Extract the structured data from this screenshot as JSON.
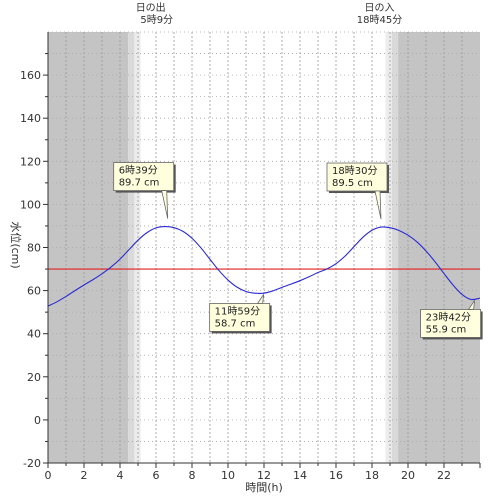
{
  "chart_data": {
    "type": "line",
    "xlabel": "時間(h)",
    "ylabel": "水位(cm)",
    "xlim": [
      0,
      24
    ],
    "ylim": [
      -20,
      180
    ],
    "x_ticks": [
      0,
      2,
      4,
      6,
      8,
      10,
      12,
      14,
      16,
      18,
      20,
      22
    ],
    "y_ticks": [
      -20,
      0,
      20,
      40,
      60,
      80,
      100,
      120,
      140,
      160
    ],
    "grid": true,
    "legend": "none",
    "sunrise": {
      "title": "日の出",
      "time_label": "5時9分",
      "hour": 5.15
    },
    "sunset": {
      "title": "日の入",
      "time_label": "18時45分",
      "hour": 18.75
    },
    "reference_line": {
      "value": 70,
      "color": "#e02020"
    },
    "series": [
      {
        "color": "#2a2ad6",
        "x": [
          0,
          0.5,
          1,
          1.5,
          2,
          2.5,
          3,
          3.5,
          4,
          4.5,
          5,
          5.5,
          6,
          6.5,
          7,
          7.5,
          8,
          8.5,
          9,
          9.5,
          10,
          10.5,
          11,
          11.5,
          12,
          12.5,
          13,
          13.5,
          14,
          14.5,
          15,
          15.5,
          16,
          16.5,
          17,
          17.5,
          18,
          18.5,
          19,
          19.5,
          20,
          20.5,
          21,
          21.5,
          22,
          22.5,
          23,
          23.5,
          24
        ],
        "y": [
          52.8,
          54.8,
          57.3,
          60.0,
          62.6,
          65.1,
          67.8,
          70.9,
          74.6,
          79.0,
          83.4,
          86.9,
          89.1,
          89.7,
          89.2,
          87.5,
          84.3,
          79.8,
          74.5,
          69.3,
          64.9,
          61.6,
          59.6,
          58.8,
          58.8,
          59.9,
          61.5,
          63.0,
          64.6,
          66.4,
          68.4,
          70.1,
          72.5,
          76.0,
          80.4,
          84.8,
          88.0,
          89.5,
          89.2,
          87.9,
          85.7,
          82.6,
          78.4,
          73.4,
          67.9,
          62.6,
          58.2,
          55.9,
          56.5
        ]
      }
    ],
    "annotations": [
      {
        "time": "6時39分",
        "value": "89.7 cm",
        "x": 6.65,
        "y": 89.7,
        "position": "above"
      },
      {
        "time": "11時59分",
        "value": "58.7 cm",
        "x": 11.98,
        "y": 58.7,
        "position": "below"
      },
      {
        "time": "18時30分",
        "value": "89.5 cm",
        "x": 18.5,
        "y": 89.5,
        "position": "above"
      },
      {
        "time": "23時42分",
        "value": "55.9 cm",
        "x": 23.7,
        "y": 55.9,
        "position": "below"
      }
    ]
  }
}
